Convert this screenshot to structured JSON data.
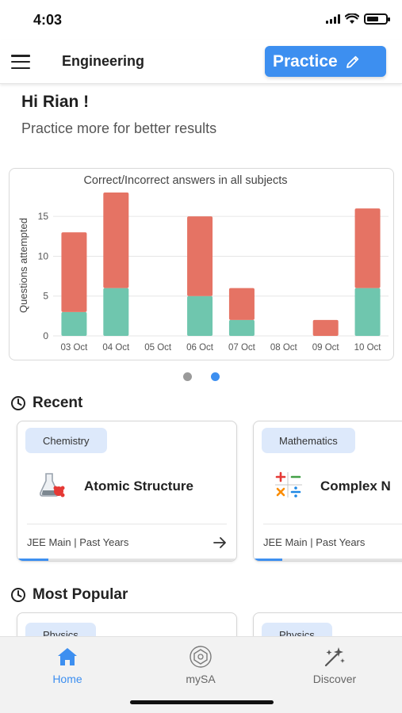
{
  "status_bar": {
    "time": "4:03"
  },
  "header": {
    "title": "Engineering",
    "practice_label": "Practice"
  },
  "greeting": {
    "title": "Hi Rian !",
    "subtitle": "Practice more for better results"
  },
  "chart_data": {
    "type": "bar",
    "stacked": true,
    "title": "Correct/Incorrect answers in all subjects",
    "xlabel": "",
    "ylabel": "Questions attempted",
    "ylim": [
      0,
      18
    ],
    "yticks": [
      0,
      5,
      10,
      15
    ],
    "categories": [
      "03 Oct",
      "04 Oct",
      "05 Oct",
      "06 Oct",
      "07 Oct",
      "08 Oct",
      "09 Oct",
      "10 Oct"
    ],
    "series": [
      {
        "values": [
          3,
          6,
          0,
          5,
          2,
          0,
          0,
          6
        ],
        "color": "#6fc6ae"
      },
      {
        "values": [
          10,
          12,
          0,
          10,
          4,
          0,
          2,
          10
        ],
        "color": "#e57364"
      }
    ],
    "grid": true,
    "legend": "none"
  },
  "pager": {
    "active_index": 1,
    "count": 2,
    "active_color": "#3d8ff0",
    "inactive_color": "#9a9a9a"
  },
  "recent": {
    "title": "Recent",
    "cards": [
      {
        "tag": "Chemistry",
        "title": "Atomic Structure",
        "meta": "JEE Main | Past Years",
        "icon": "flask-icon",
        "progress": 0.14
      },
      {
        "tag": "Mathematics",
        "title": "Complex N",
        "meta": "JEE Main | Past Years",
        "icon": "math-symbols-icon",
        "progress": 0.18
      }
    ]
  },
  "popular": {
    "title": "Most Popular",
    "cards": [
      {
        "tag": "Physics"
      },
      {
        "tag": "Physics"
      }
    ]
  },
  "bottom_nav": {
    "items": [
      {
        "label": "Home",
        "icon": "home-icon",
        "active": true
      },
      {
        "label": "mySA",
        "icon": "mysa-icon",
        "active": false
      },
      {
        "label": "Discover",
        "icon": "sparkle-icon",
        "active": false
      }
    ]
  },
  "colors": {
    "accent": "#3d8ff0",
    "correct": "#6fc6ae",
    "incorrect": "#e57364"
  }
}
